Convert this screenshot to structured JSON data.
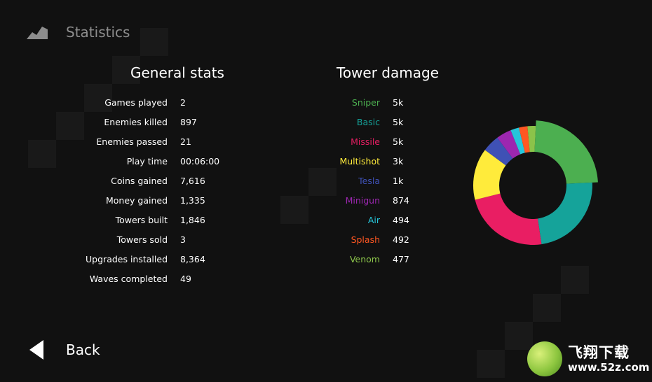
{
  "header": {
    "title": "Statistics"
  },
  "general": {
    "title": "General stats",
    "rows": [
      {
        "label": "Games played",
        "value": "2"
      },
      {
        "label": "Enemies killed",
        "value": "897"
      },
      {
        "label": "Enemies passed",
        "value": "21"
      },
      {
        "label": "Play time",
        "value": "00:06:00"
      },
      {
        "label": "Coins gained",
        "value": "7,616"
      },
      {
        "label": "Money gained",
        "value": "1,335"
      },
      {
        "label": "Towers built",
        "value": "1,846"
      },
      {
        "label": "Towers sold",
        "value": "3"
      },
      {
        "label": "Upgrades installed",
        "value": "8,364"
      },
      {
        "label": "Waves completed",
        "value": "49"
      }
    ]
  },
  "damage": {
    "title": "Tower damage",
    "rows": [
      {
        "label": "Sniper",
        "value": "5k",
        "color": "#4caf50"
      },
      {
        "label": "Basic",
        "value": "5k",
        "color": "#15a39a"
      },
      {
        "label": "Missile",
        "value": "5k",
        "color": "#e91e63"
      },
      {
        "label": "Multishot",
        "value": "3k",
        "color": "#ffeb3b"
      },
      {
        "label": "Tesla",
        "value": "1k",
        "color": "#3f51b5"
      },
      {
        "label": "Minigun",
        "value": "874",
        "color": "#9c27b0"
      },
      {
        "label": "Air",
        "value": "494",
        "color": "#26c6da"
      },
      {
        "label": "Splash",
        "value": "492",
        "color": "#ff5722"
      },
      {
        "label": "Venom",
        "value": "477",
        "color": "#8bc34a"
      }
    ]
  },
  "chart_data": {
    "type": "pie",
    "style": "donut",
    "categories": [
      "Sniper",
      "Basic",
      "Missile",
      "Multishot",
      "Tesla",
      "Minigun",
      "Air",
      "Splash",
      "Venom"
    ],
    "values": [
      5000,
      5000,
      5000,
      3000,
      1000,
      874,
      494,
      492,
      477
    ],
    "colors": [
      "#4caf50",
      "#15a39a",
      "#e91e63",
      "#ffeb3b",
      "#3f51b5",
      "#9c27b0",
      "#26c6da",
      "#ff5722",
      "#8bc34a"
    ]
  },
  "back": {
    "label": "Back"
  },
  "watermark": {
    "brand": "飞翔下载",
    "url": "www.52z.com"
  }
}
